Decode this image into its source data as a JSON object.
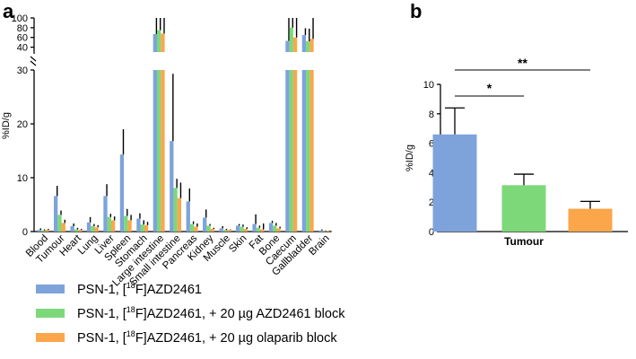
{
  "panel_labels": {
    "a": "a",
    "b": "b"
  },
  "colors": {
    "series1": "#7ea3db",
    "series2": "#7dd87a",
    "series3": "#fba64a",
    "error": "#000000"
  },
  "legend": [
    {
      "prefix": "PSN-1, [",
      "sup": "18",
      "suffix": "F]AZD2461"
    },
    {
      "prefix": "PSN-1, [",
      "sup": "18",
      "suffix": "F]AZD2461, + 20 µg AZD2461 block"
    },
    {
      "prefix": "PSN-1, [",
      "sup": "18",
      "suffix": "F]AZD2461, + 20 µg olaparib block"
    }
  ],
  "chart_data": [
    {
      "type": "bar",
      "panel": "a",
      "ylabel": "%ID/g",
      "y_lower_range": [
        0,
        30
      ],
      "y_lower_ticks": [
        0,
        10,
        20,
        30
      ],
      "y_upper_range": [
        30,
        100
      ],
      "y_upper_ticks": [
        40,
        60,
        80,
        100
      ],
      "categories": [
        "Blood",
        "Tumour",
        "Heart",
        "Lung",
        "Liver",
        "Spleen",
        "Stomach",
        "Large intestine",
        "Small intestine",
        "Pancreas",
        "Kidney",
        "Muscle",
        "Skin",
        "Fat",
        "Bone",
        "Caecum",
        "Gallbladder",
        "Brain"
      ],
      "series": [
        {
          "name": "PSN-1, [18F]AZD2461",
          "values": [
            0.3,
            6.6,
            1.0,
            1.7,
            6.6,
            14.3,
            2.4,
            67,
            16.8,
            5.6,
            2.6,
            0.6,
            1.1,
            1.4,
            1.6,
            53,
            65,
            0.2
          ],
          "errors": [
            0.3,
            1.9,
            0.5,
            1.0,
            2.2,
            4.7,
            1.0,
            33,
            12.5,
            2.4,
            1.5,
            0.4,
            0.3,
            1.8,
            0.4,
            47,
            14,
            0.2
          ]
        },
        {
          "name": "PSN-1, [18F]AZD2461, + 20 µg AZD2461 block",
          "values": [
            0.2,
            3.1,
            0.4,
            1.0,
            2.7,
            2.9,
            1.3,
            75,
            8.1,
            1.4,
            1.1,
            0.3,
            0.9,
            0.7,
            1.1,
            80,
            52,
            0.1
          ],
          "errors": [
            0.2,
            0.8,
            0.3,
            0.4,
            0.6,
            1.3,
            0.8,
            25,
            1.7,
            0.5,
            0.3,
            0.2,
            0.4,
            0.4,
            0.5,
            20,
            26,
            0.1
          ]
        },
        {
          "name": "PSN-1, [18F]AZD2461, + 20 µg olaparib block",
          "values": [
            0.3,
            1.6,
            0.3,
            0.8,
            2.1,
            2.1,
            1.2,
            68,
            6.2,
            0.9,
            0.5,
            0.3,
            0.5,
            0.4,
            0.6,
            60,
            57,
            0.1
          ],
          "errors": [
            0.2,
            0.6,
            0.2,
            0.4,
            0.7,
            1.0,
            0.6,
            32,
            2.9,
            0.6,
            0.2,
            0.1,
            0.3,
            1.1,
            0.3,
            40,
            43,
            0.1
          ]
        }
      ]
    },
    {
      "type": "bar",
      "panel": "b",
      "ylabel": "%ID/g",
      "ylim": [
        0,
        10
      ],
      "yticks": [
        0,
        2,
        4,
        6,
        8,
        10
      ],
      "categories": [
        "Tumour"
      ],
      "series": [
        {
          "name": "PSN-1, [18F]AZD2461",
          "value": 6.6,
          "error": 1.8
        },
        {
          "name": "PSN-1, [18F]AZD2461, + 20 µg AZD2461 block",
          "value": 3.15,
          "error": 0.75
        },
        {
          "name": "PSN-1, [18F]AZD2461, + 20 µg olaparib block",
          "value": 1.55,
          "error": 0.5
        }
      ],
      "significance": [
        {
          "from": 0,
          "to": 1,
          "label": "*"
        },
        {
          "from": 0,
          "to": 2,
          "label": "**"
        }
      ]
    }
  ]
}
